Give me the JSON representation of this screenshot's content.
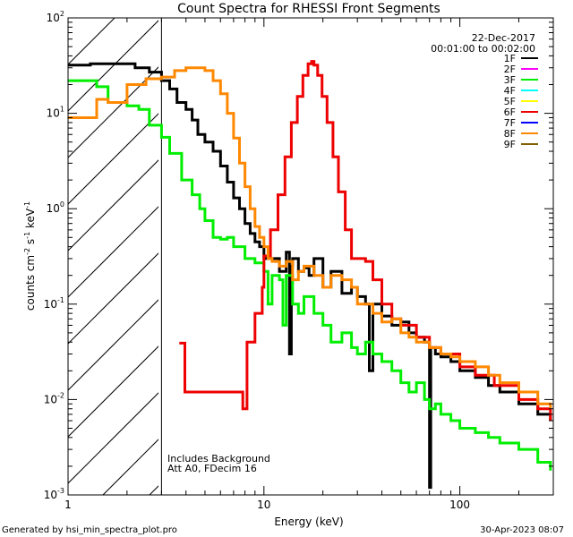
{
  "chart_data": {
    "type": "line",
    "title": "Count Spectra for RHESSI Front Segments",
    "xlabel": "Energy (keV)",
    "ylabel_parts": [
      "counts cm",
      "-2",
      " s",
      "-1",
      " keV",
      "-1"
    ],
    "xscale": "log",
    "yscale": "log",
    "xlim": [
      1,
      300
    ],
    "ylim": [
      0.001,
      100
    ],
    "x_ticks": [
      {
        "value": 1,
        "label": "1"
      },
      {
        "value": 10,
        "label": "10"
      },
      {
        "value": 100,
        "label": "100"
      }
    ],
    "y_ticks": [
      {
        "value": 0.001,
        "base": "10",
        "exp": "-3"
      },
      {
        "value": 0.01,
        "base": "10",
        "exp": "-2"
      },
      {
        "value": 0.1,
        "base": "10",
        "exp": "-1"
      },
      {
        "value": 1,
        "base": "10",
        "exp": "0"
      },
      {
        "value": 10,
        "base": "10",
        "exp": "1"
      },
      {
        "value": 100,
        "base": "10",
        "exp": "2"
      }
    ],
    "date": "22-Dec-2017",
    "time_range": "00:01:00 to 00:02:00",
    "excluded_region_max_kev": 3,
    "annotations": [
      "Includes Background",
      "Att A0, FDecim 16"
    ],
    "legend": [
      {
        "name": "1F",
        "color": "#000000"
      },
      {
        "name": "2F",
        "color": "#ff00ff"
      },
      {
        "name": "3F",
        "color": "#00ee00"
      },
      {
        "name": "4F",
        "color": "#00ffff"
      },
      {
        "name": "5F",
        "color": "#ffff00"
      },
      {
        "name": "6F",
        "color": "#ee0000"
      },
      {
        "name": "7F",
        "color": "#0000ff"
      },
      {
        "name": "8F",
        "color": "#ff8800"
      },
      {
        "name": "9F",
        "color": "#806000"
      }
    ],
    "series": [
      {
        "name": "1F",
        "color": "#000000",
        "x": [
          1.0,
          1.3,
          1.7,
          2.2,
          2.6,
          3.0,
          3.3,
          3.6,
          4.0,
          4.3,
          4.6,
          5.0,
          5.5,
          6.0,
          6.5,
          7.0,
          7.5,
          8.0,
          8.5,
          9.0,
          9.5,
          10.0,
          11.0,
          12.0,
          13.0,
          13.5,
          13.8,
          14.0,
          15.0,
          16.0,
          17.0,
          18.0,
          20.0,
          22.0,
          25.0,
          28.0,
          30.0,
          33.0,
          34.5,
          36.0,
          40.0,
          45.0,
          50.0,
          55.0,
          60.0,
          66.0,
          70.0,
          71.0,
          75.0,
          80.0,
          90.0,
          100.0,
          120.0,
          140.0,
          160.0,
          200.0,
          250.0,
          290.0
        ],
        "y": [
          32,
          33,
          33,
          30,
          27,
          22,
          18,
          13,
          11,
          8.5,
          6,
          5,
          4,
          2.8,
          1.9,
          1.3,
          1.0,
          0.7,
          0.55,
          0.45,
          0.4,
          0.3,
          0.3,
          0.22,
          0.35,
          0.03,
          0.25,
          0.3,
          0.22,
          0.24,
          0.2,
          0.3,
          0.15,
          0.22,
          0.13,
          0.15,
          0.12,
          0.1,
          0.02,
          0.1,
          0.075,
          0.06,
          0.065,
          0.05,
          0.045,
          0.04,
          0.0012,
          0.035,
          0.03,
          0.028,
          0.025,
          0.02,
          0.017,
          0.014,
          0.012,
          0.009,
          0.007,
          0.006
        ]
      },
      {
        "name": "3F",
        "color": "#00ee00",
        "x": [
          1.0,
          1.4,
          1.6,
          2.0,
          2.3,
          2.6,
          3.0,
          3.3,
          3.8,
          4.3,
          4.7,
          5.0,
          5.5,
          6.0,
          6.5,
          7.0,
          8.0,
          9.0,
          10.0,
          10.5,
          11.0,
          12.0,
          12.5,
          13.0,
          14.0,
          15.0,
          16.0,
          18.0,
          20.0,
          22.0,
          25.0,
          28.0,
          30.0,
          33.0,
          36.0,
          40.0,
          45.0,
          50.0,
          55.0,
          60.0,
          66.0,
          70.0,
          75.0,
          80.0,
          90.0,
          100.0,
          120.0,
          140.0,
          160.0,
          200.0,
          250.0,
          290.0
        ],
        "y": [
          22,
          19,
          13,
          12,
          11,
          7.5,
          5.6,
          3.8,
          2.0,
          1.4,
          1.0,
          0.75,
          0.5,
          0.48,
          0.5,
          0.4,
          0.3,
          0.27,
          0.22,
          0.1,
          0.2,
          0.18,
          0.06,
          0.2,
          0.1,
          0.08,
          0.12,
          0.08,
          0.06,
          0.04,
          0.05,
          0.035,
          0.03,
          0.04,
          0.03,
          0.025,
          0.02,
          0.015,
          0.012,
          0.015,
          0.01,
          0.008,
          0.009,
          0.007,
          0.006,
          0.005,
          0.0045,
          0.004,
          0.0035,
          0.003,
          0.0022,
          0.0018
        ]
      },
      {
        "name": "6F",
        "color": "#ee0000",
        "x": [
          3.7,
          3.95,
          3.95,
          4.2,
          7.8,
          8.2,
          9.0,
          9.8,
          10.0,
          10.8,
          11.8,
          12.8,
          13.8,
          14.8,
          15.8,
          16.8,
          17.5,
          18.0,
          18.8,
          19.8,
          21.0,
          22.5,
          24.0,
          26.0,
          28.0,
          30.0,
          33.0,
          36.0,
          40.0,
          45.0,
          50.0,
          60.0,
          70.0,
          80.0,
          100.0,
          120.0,
          150.0,
          200.0,
          250.0,
          290.0
        ],
        "y": [
          0.039,
          0.039,
          0.012,
          0.012,
          0.008,
          0.04,
          0.08,
          0.15,
          0.32,
          0.6,
          1.4,
          3.5,
          8.0,
          15.0,
          25.0,
          33.0,
          35.0,
          32.0,
          25.0,
          15.0,
          8.0,
          3.5,
          1.5,
          0.6,
          0.3,
          0.3,
          0.28,
          0.18,
          0.1,
          0.07,
          0.06,
          0.045,
          0.035,
          0.03,
          0.022,
          0.018,
          0.014,
          0.01,
          0.008,
          0.006
        ]
      },
      {
        "name": "8F",
        "color": "#ff8800",
        "x": [
          1.0,
          1.3,
          1.4,
          1.6,
          2.0,
          2.5,
          3.0,
          3.5,
          4.0,
          4.5,
          5.0,
          5.5,
          6.0,
          6.5,
          7.0,
          7.5,
          8.0,
          8.5,
          9.0,
          9.5,
          10.0,
          10.5,
          11.0,
          12.0,
          13.0,
          14.0,
          15.0,
          16.0,
          18.0,
          20.0,
          22.0,
          25.0,
          28.0,
          30.0,
          33.0,
          36.0,
          40.0,
          45.0,
          50.0,
          55.0,
          60.0,
          70.0,
          80.0,
          90.0,
          100.0,
          120.0,
          140.0,
          160.0,
          200.0,
          250.0,
          290.0
        ],
        "y": [
          9,
          9,
          14,
          13,
          20,
          23,
          24,
          28,
          30,
          30,
          28,
          22,
          16,
          10,
          5.5,
          3,
          1.7,
          1.0,
          0.65,
          0.5,
          0.4,
          0.3,
          0.28,
          0.25,
          0.28,
          0.18,
          0.22,
          0.25,
          0.2,
          0.15,
          0.2,
          0.18,
          0.15,
          0.1,
          0.1,
          0.08,
          0.065,
          0.07,
          0.05,
          0.045,
          0.04,
          0.035,
          0.03,
          0.028,
          0.025,
          0.022,
          0.018,
          0.015,
          0.012,
          0.009,
          0.008
        ]
      }
    ]
  },
  "footer": {
    "generator": "Generated by hsi_min_spectra_plot.pro",
    "timestamp": "30-Apr-2023 08:07"
  }
}
